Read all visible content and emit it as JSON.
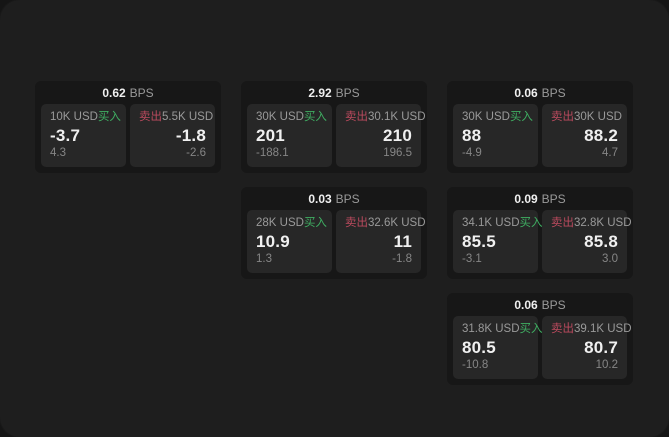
{
  "colors": {
    "window_bg": "#1e1e1e",
    "card_bg": "#171717",
    "cell_bg": "#272727",
    "buy_green": "#3fae62",
    "sell_red": "#bb4a5e",
    "text_primary": "#f0f0f0",
    "text_secondary": "#9a9a9a",
    "text_tertiary": "#868686"
  },
  "labels": {
    "bps_unit": "BPS",
    "buy": "买入",
    "sell": "卖出"
  },
  "cards": [
    {
      "col": 1,
      "row": 1,
      "bps": "0.62",
      "buy": {
        "amount": "10K USD",
        "price": "-3.7",
        "delta": "4.3"
      },
      "sell": {
        "amount": "5.5K USD",
        "price": "-1.8",
        "delta": "-2.6"
      }
    },
    {
      "col": 2,
      "row": 1,
      "bps": "2.92",
      "buy": {
        "amount": "30K USD",
        "price": "201",
        "delta": "-188.1"
      },
      "sell": {
        "amount": "30.1K USD",
        "price": "210",
        "delta": "196.5"
      }
    },
    {
      "col": 3,
      "row": 1,
      "bps": "0.06",
      "buy": {
        "amount": "30K USD",
        "price": "88",
        "delta": "-4.9"
      },
      "sell": {
        "amount": "30K USD",
        "price": "88.2",
        "delta": "4.7"
      }
    },
    {
      "col": 2,
      "row": 2,
      "bps": "0.03",
      "buy": {
        "amount": "28K USD",
        "price": "10.9",
        "delta": "1.3"
      },
      "sell": {
        "amount": "32.6K USD",
        "price": "11",
        "delta": "-1.8"
      }
    },
    {
      "col": 3,
      "row": 2,
      "bps": "0.09",
      "buy": {
        "amount": "34.1K USD",
        "price": "85.5",
        "delta": "-3.1"
      },
      "sell": {
        "amount": "32.8K USD",
        "price": "85.8",
        "delta": "3.0"
      }
    },
    {
      "col": 3,
      "row": 3,
      "bps": "0.06",
      "buy": {
        "amount": "31.8K USD",
        "price": "80.5",
        "delta": "-10.8"
      },
      "sell": {
        "amount": "39.1K USD",
        "price": "80.7",
        "delta": "10.2"
      }
    }
  ]
}
